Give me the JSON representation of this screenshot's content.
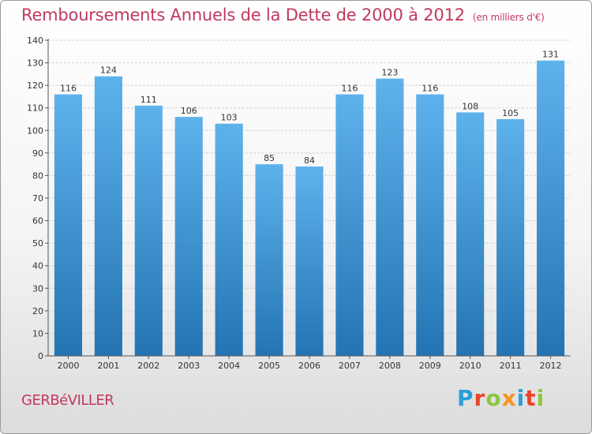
{
  "header": {
    "title": "Remboursements Annuels de la Dette de 2000 à 2012",
    "unit": "(en milliers d'€)"
  },
  "footer": {
    "place": "GERBéVILLER",
    "logo_letters": [
      "P",
      "r",
      "o",
      "x",
      "i",
      "t",
      "i"
    ],
    "logo_colors": [
      "#2a9fd6",
      "#e8452a",
      "#8cc63f",
      "#f7931e",
      "#2a9fd6",
      "#e8452a",
      "#8cc63f"
    ]
  },
  "colors": {
    "title": "#c0395d",
    "bar_top": "#5eb2ec",
    "bar_bottom": "#2474b3",
    "axis": "#555555",
    "grid": "#d2d2d2"
  },
  "chart_data": {
    "type": "bar",
    "categories": [
      "2000",
      "2001",
      "2002",
      "2003",
      "2004",
      "2005",
      "2006",
      "2007",
      "2008",
      "2009",
      "2010",
      "2011",
      "2012"
    ],
    "values": [
      116,
      124,
      111,
      106,
      103,
      85,
      84,
      116,
      123,
      116,
      108,
      105,
      131
    ],
    "ylim": [
      0,
      140
    ],
    "yticks": [
      0,
      10,
      20,
      30,
      40,
      50,
      60,
      70,
      80,
      90,
      100,
      110,
      120,
      130,
      140
    ],
    "grid": true,
    "data_labels": true
  }
}
